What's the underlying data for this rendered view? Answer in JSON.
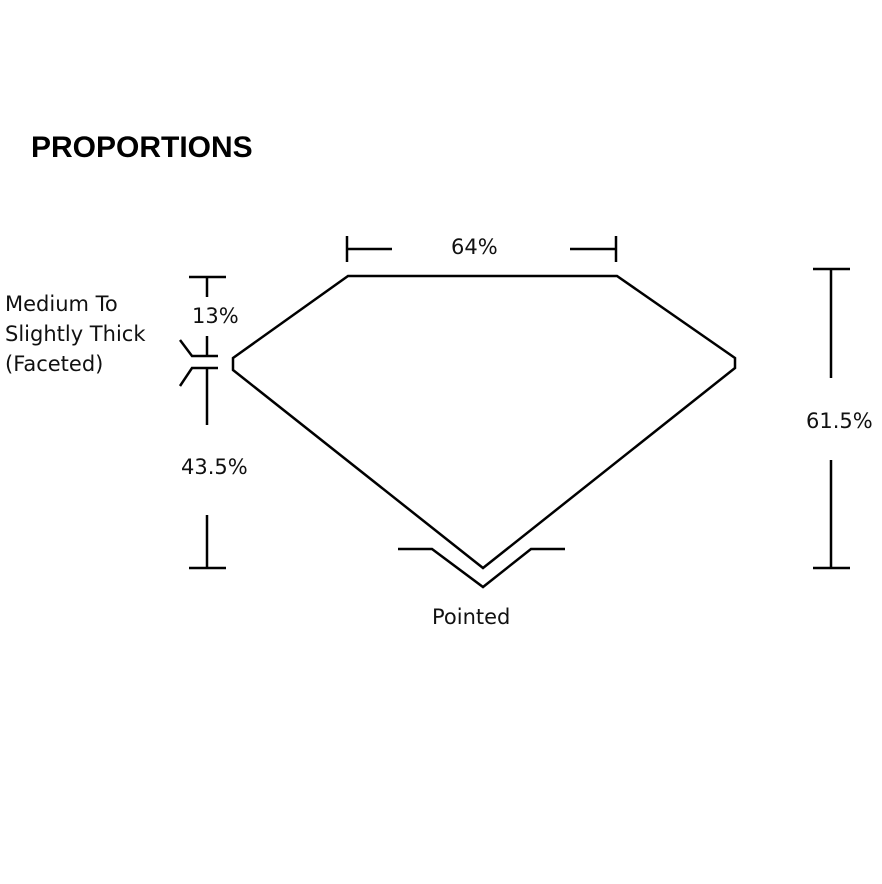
{
  "title": "PROPORTIONS",
  "labels": {
    "table": "64%",
    "crown": "13%",
    "girdle_line1": "Medium To",
    "girdle_line2": "Slightly Thick",
    "girdle_line3": "(Faceted)",
    "pavilion": "43.5%",
    "depth": "61.5%",
    "culet": "Pointed"
  },
  "colors": {
    "line": "#000000",
    "background": "#ffffff"
  }
}
